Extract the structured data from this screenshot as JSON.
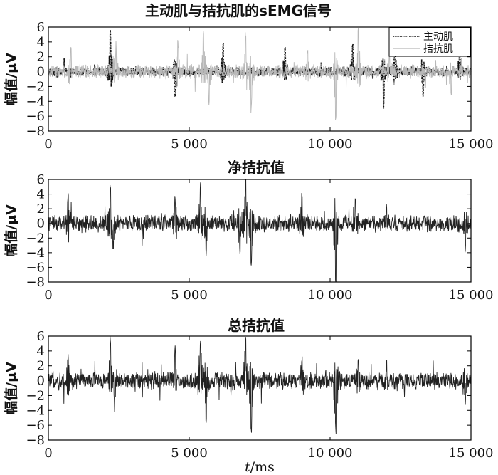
{
  "chart_data": [
    {
      "type": "line",
      "title": "主动肌与拮抗肌的sEMG信号",
      "xlabel": "",
      "ylabel": "幅值/μV",
      "xlim": [
        0,
        15000
      ],
      "ylim": [
        -8,
        6
      ],
      "x_ticks": [
        "0",
        "5 000",
        "10 000",
        "15 000"
      ],
      "y_ticks": [
        "6",
        "4",
        "2",
        "0",
        "−2",
        "−4",
        "−6",
        "−8"
      ],
      "legend": {
        "placement": "top-right"
      },
      "series": [
        {
          "name": "主动肌",
          "color": "#111111",
          "style": "dotted-dense",
          "noise_amplitude": 0.6,
          "bursts": [
            [
              2200,
              5.2
            ],
            [
              4500,
              -3.5
            ],
            [
              6200,
              4.0
            ],
            [
              8400,
              3.2
            ],
            [
              10800,
              3.8
            ],
            [
              11900,
              -4.5
            ],
            [
              12300,
              4.2
            ],
            [
              13300,
              -3.5
            ],
            [
              14600,
              2.8
            ]
          ]
        },
        {
          "name": "拮抗肌",
          "color": "#b8b8b8",
          "style": "solid",
          "noise_amplitude": 0.9,
          "bursts": [
            [
              800,
              3.0
            ],
            [
              2400,
              3.5
            ],
            [
              4600,
              3.8
            ],
            [
              5500,
              5.8
            ],
            [
              5700,
              -4.5
            ],
            [
              7000,
              5.0
            ],
            [
              7200,
              -5.4
            ],
            [
              9200,
              3.0
            ],
            [
              10200,
              -7.2
            ],
            [
              11000,
              5.5
            ],
            [
              12100,
              2.5
            ],
            [
              14300,
              -3.0
            ]
          ]
        }
      ]
    },
    {
      "type": "line",
      "title": "净拮抗值",
      "xlabel": "",
      "ylabel": "幅值/μV",
      "xlim": [
        0,
        15000
      ],
      "ylim": [
        -8,
        6
      ],
      "x_ticks": [
        "0",
        "5 000",
        "10 000",
        "15 000"
      ],
      "y_ticks": [
        "6",
        "4",
        "2",
        "0",
        "−2",
        "−4",
        "−6",
        "−8"
      ],
      "series": [
        {
          "color": "#222222",
          "style": "solid",
          "noise_amplitude": 1.1,
          "bursts": [
            [
              700,
              4.0
            ],
            [
              2200,
              5.3
            ],
            [
              2300,
              -3.9
            ],
            [
              4500,
              3.8
            ],
            [
              5400,
              4.9
            ],
            [
              5600,
              -4.6
            ],
            [
              6800,
              -4.3
            ],
            [
              7000,
              5.8
            ],
            [
              7200,
              -6.2
            ],
            [
              9000,
              3.6
            ],
            [
              10200,
              -8.0
            ],
            [
              10900,
              3.9
            ],
            [
              12000,
              2.5
            ],
            [
              14800,
              -3.8
            ]
          ]
        }
      ]
    },
    {
      "type": "line",
      "title": "总拮抗值",
      "xlabel": "t/ms",
      "ylabel": "幅值/μV",
      "xlim": [
        0,
        15000
      ],
      "ylim": [
        -8,
        6
      ],
      "x_ticks": [
        "0",
        "5 000",
        "10 000",
        "15 000"
      ],
      "y_ticks": [
        "6",
        "4",
        "2",
        "0",
        "−2",
        "−4",
        "−6",
        "−8"
      ],
      "series": [
        {
          "color": "#222222",
          "style": "solid",
          "noise_amplitude": 1.1,
          "bursts": [
            [
              700,
              3.5
            ],
            [
              2200,
              5.7
            ],
            [
              2350,
              -3.5
            ],
            [
              4500,
              4.0
            ],
            [
              5400,
              5.9
            ],
            [
              5600,
              -5.0
            ],
            [
              7000,
              5.8
            ],
            [
              7200,
              -6.8
            ],
            [
              9000,
              3.6
            ],
            [
              10200,
              -7.0
            ],
            [
              11000,
              3.5
            ],
            [
              12000,
              2.2
            ],
            [
              14800,
              -3.5
            ]
          ]
        }
      ]
    }
  ]
}
